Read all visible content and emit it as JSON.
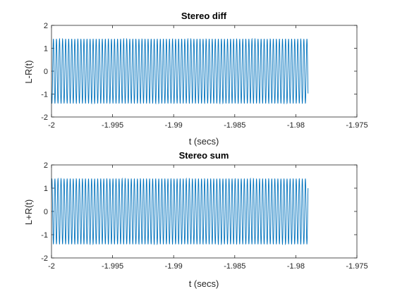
{
  "chart_data": [
    {
      "type": "line",
      "title": "Stereo diff",
      "xlabel": "t (secs)",
      "ylabel": "L-R(t)",
      "xlim": [
        -2,
        -1.975
      ],
      "ylim": [
        -2,
        2
      ],
      "xticks": [
        -2,
        -1.995,
        -1.99,
        -1.985,
        -1.98,
        -1.975
      ],
      "xtick_labels": [
        "-2",
        "-1.995",
        "-1.99",
        "-1.985",
        "-1.98",
        "-1.975"
      ],
      "yticks": [
        -2,
        -1,
        0,
        1,
        2
      ],
      "ytick_labels": [
        "-2",
        "-1",
        "0",
        "1",
        "2"
      ],
      "grid": false,
      "series": [
        {
          "color": "#0072BD",
          "signal": {
            "kind": "sine",
            "amplitude": 1.414,
            "frequency_hz": 4000,
            "phase_rad": 3.9,
            "t_start": -2,
            "t_end": -1.979
          }
        }
      ]
    },
    {
      "type": "line",
      "title": "Stereo sum",
      "xlabel": "t (secs)",
      "ylabel": "L+R(t)",
      "xlim": [
        -2,
        -1.975
      ],
      "ylim": [
        -2,
        2
      ],
      "xticks": [
        -2,
        -1.995,
        -1.99,
        -1.985,
        -1.98,
        -1.975
      ],
      "xtick_labels": [
        "-2",
        "-1.995",
        "-1.99",
        "-1.985",
        "-1.98",
        "-1.975"
      ],
      "yticks": [
        -2,
        -1,
        0,
        1,
        2
      ],
      "ytick_labels": [
        "-2",
        "-1",
        "0",
        "1",
        "2"
      ],
      "grid": false,
      "series": [
        {
          "color": "#0072BD",
          "signal": {
            "kind": "sine",
            "amplitude": 1.414,
            "frequency_hz": 4000,
            "phase_rad": 0.785,
            "t_start": -2,
            "t_end": -1.979
          }
        }
      ]
    }
  ]
}
